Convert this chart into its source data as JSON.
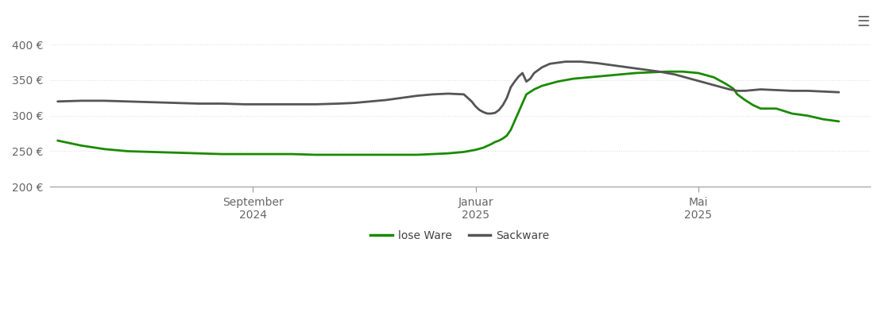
{
  "ylim": [
    200,
    415
  ],
  "yticks": [
    200,
    250,
    300,
    350,
    400
  ],
  "ytick_labels": [
    "200 €",
    "250 €",
    "300 €",
    "350 €",
    "400 €"
  ],
  "background_color": "#ffffff",
  "grid_color": "#e0e0e0",
  "lose_ware_color": "#1a8a00",
  "sackware_color": "#555555",
  "legend_labels": [
    "lose Ware",
    "Sackware"
  ],
  "x_tick_positions": [
    0.25,
    0.535,
    0.82
  ],
  "x_tick_labels": [
    "September\n2024",
    "Januar\n2025",
    "Mai\n2025"
  ],
  "lose_ware_x": [
    0.0,
    0.03,
    0.06,
    0.09,
    0.12,
    0.15,
    0.18,
    0.21,
    0.24,
    0.27,
    0.3,
    0.33,
    0.36,
    0.38,
    0.4,
    0.42,
    0.44,
    0.46,
    0.48,
    0.5,
    0.52,
    0.535,
    0.545,
    0.555,
    0.56,
    0.565,
    0.57,
    0.575,
    0.58,
    0.59,
    0.6,
    0.61,
    0.62,
    0.64,
    0.66,
    0.68,
    0.7,
    0.72,
    0.74,
    0.76,
    0.78,
    0.8,
    0.82,
    0.84,
    0.855,
    0.865,
    0.87,
    0.88,
    0.89,
    0.9,
    0.91,
    0.92,
    0.94,
    0.96,
    0.98,
    1.0
  ],
  "lose_ware_y": [
    265,
    258,
    253,
    250,
    249,
    248,
    247,
    246,
    246,
    246,
    246,
    245,
    245,
    245,
    245,
    245,
    245,
    245,
    246,
    247,
    249,
    252,
    255,
    260,
    263,
    265,
    268,
    272,
    280,
    305,
    330,
    337,
    342,
    348,
    352,
    354,
    356,
    358,
    360,
    361,
    362,
    362,
    360,
    354,
    345,
    338,
    330,
    322,
    315,
    310,
    310,
    310,
    303,
    300,
    295,
    292
  ],
  "sackware_x": [
    0.0,
    0.03,
    0.06,
    0.09,
    0.12,
    0.15,
    0.18,
    0.21,
    0.24,
    0.27,
    0.3,
    0.33,
    0.36,
    0.38,
    0.4,
    0.42,
    0.44,
    0.46,
    0.48,
    0.5,
    0.52,
    0.53,
    0.535,
    0.54,
    0.545,
    0.55,
    0.555,
    0.56,
    0.565,
    0.57,
    0.575,
    0.58,
    0.585,
    0.59,
    0.595,
    0.6,
    0.605,
    0.61,
    0.62,
    0.63,
    0.65,
    0.67,
    0.69,
    0.71,
    0.73,
    0.75,
    0.77,
    0.79,
    0.81,
    0.83,
    0.85,
    0.86,
    0.87,
    0.88,
    0.89,
    0.9,
    0.92,
    0.94,
    0.96,
    0.98,
    1.0
  ],
  "sackware_y": [
    320,
    321,
    321,
    320,
    319,
    318,
    317,
    317,
    316,
    316,
    316,
    316,
    317,
    318,
    320,
    322,
    325,
    328,
    330,
    331,
    330,
    320,
    313,
    308,
    305,
    303,
    303,
    304,
    308,
    315,
    325,
    340,
    348,
    355,
    360,
    348,
    352,
    360,
    368,
    373,
    376,
    376,
    374,
    371,
    368,
    365,
    362,
    358,
    352,
    346,
    340,
    337,
    335,
    335,
    336,
    337,
    336,
    335,
    335,
    334,
    333
  ]
}
